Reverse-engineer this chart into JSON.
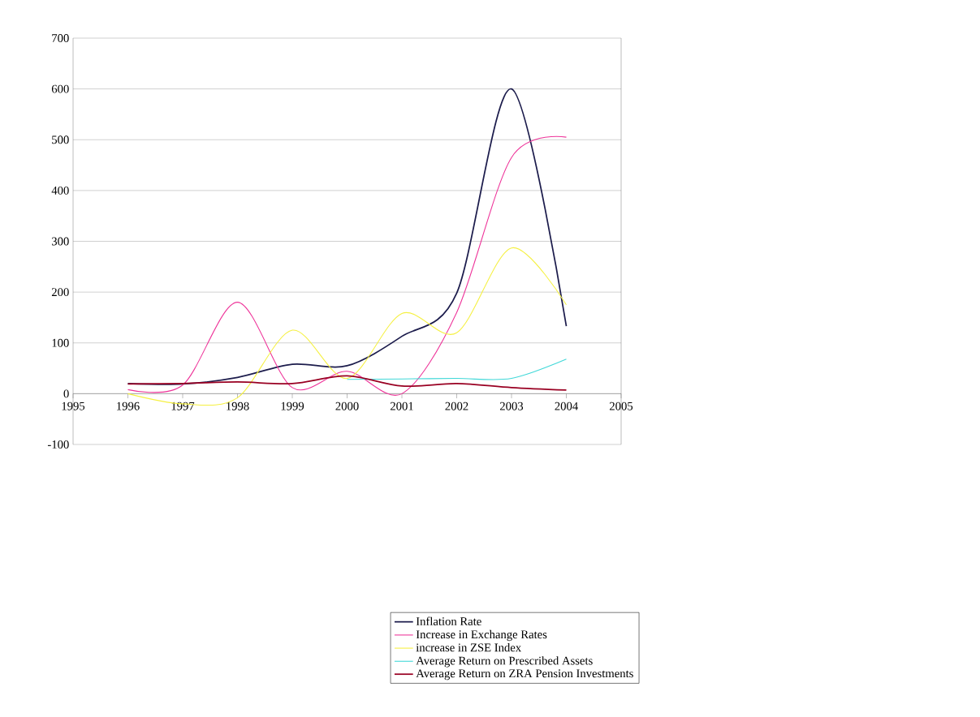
{
  "chart_data": {
    "type": "line",
    "x": [
      1996,
      1997,
      1998,
      1999,
      2000,
      2001,
      2002,
      2003,
      2004
    ],
    "series": [
      {
        "name": "Inflation Rate",
        "color": "#1c1c4c",
        "values": [
          20,
          19,
          32,
          58,
          55,
          113,
          198,
          600,
          133
        ]
      },
      {
        "name": "Increase in Exchange Rates",
        "color": "#ee3399",
        "values": [
          8,
          17,
          180,
          12,
          44,
          0,
          160,
          465,
          505
        ]
      },
      {
        "name": "increase in ZSE Index",
        "color": "#f5f040",
        "values": [
          0,
          -20,
          -8,
          125,
          30,
          158,
          120,
          287,
          175
        ]
      },
      {
        "name": "Average Return on Prescribed Assets",
        "color": "#40d8d8",
        "values": [
          null,
          null,
          null,
          null,
          28,
          29,
          30,
          30,
          68
        ]
      },
      {
        "name": "Average Return on ZRA Pension Investments",
        "color": "#990022",
        "values": [
          19,
          20,
          23,
          20,
          35,
          15,
          20,
          12,
          7
        ]
      }
    ],
    "xlim": [
      1995,
      2005
    ],
    "xticks": [
      1995,
      1996,
      1997,
      1998,
      1999,
      2000,
      2001,
      2002,
      2003,
      2004,
      2005
    ],
    "ylim": [
      -100,
      700
    ],
    "yticks": [
      -100,
      0,
      100,
      200,
      300,
      400,
      500,
      600,
      700
    ],
    "grid": "y",
    "legend": "bottom",
    "marker": "none",
    "line_style": "solid"
  }
}
